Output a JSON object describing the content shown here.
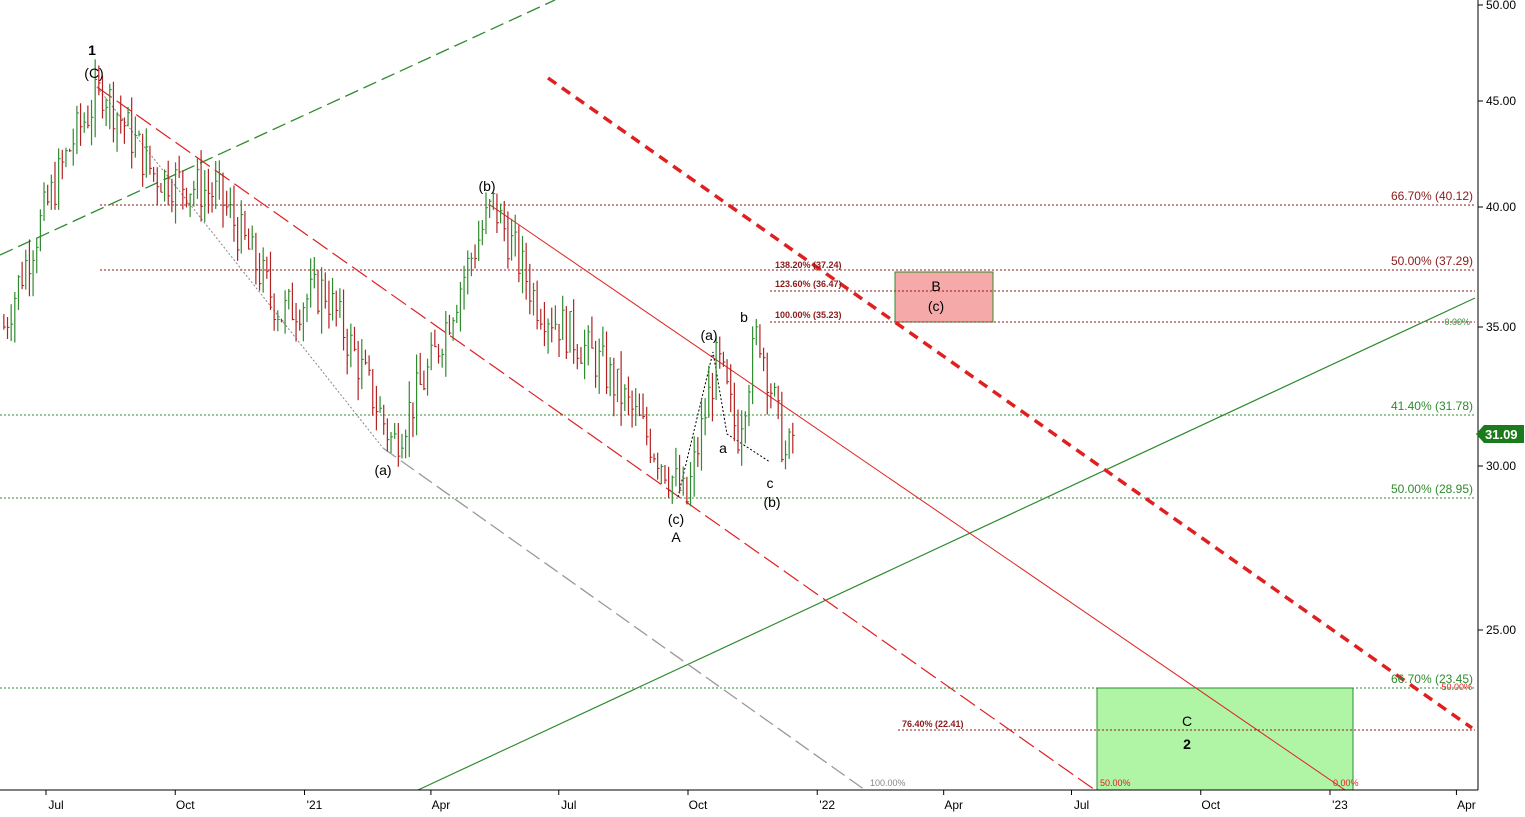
{
  "colors": {
    "up_bar": "#2e8b2e",
    "down_bar": "#b22222",
    "fib_red": "#8b1a1a",
    "fib_green": "#2e8b2e",
    "channel_red": "#e02020",
    "trend_green": "#2e8b2e",
    "wave_blue": "#0000dd",
    "zone_red": "#f5a9a9",
    "zone_green": "#b0f5a6",
    "price_tag": "#1b7a1b"
  },
  "chart_data": {
    "type": "ohlc",
    "y_axis": {
      "ticks": [
        "50.00",
        "45.00",
        "40.00",
        "35.00",
        "30.00",
        "25.00"
      ],
      "scale": "log"
    },
    "x_axis": {
      "ticks": [
        "Jul",
        "Oct",
        "'21",
        "Apr",
        "Jul",
        "Oct",
        "'22",
        "Apr",
        "Jul",
        "Oct",
        "'23",
        "Apr"
      ]
    },
    "current_price": "31.09",
    "price_path": [
      {
        "date": "2020-06",
        "price": 35.0
      },
      {
        "date": "2020-07-20",
        "price": 43.0
      },
      {
        "date": "2020-08-10",
        "price": 45.6
      },
      {
        "date": "2020-09-15",
        "price": 41.5
      },
      {
        "date": "2020-11-01",
        "price": 40.5
      },
      {
        "date": "2020-12-15",
        "price": 35.5
      },
      {
        "date": "2021-01-15",
        "price": 36.5
      },
      {
        "date": "2021-03-05",
        "price": 30.7
      },
      {
        "date": "2021-04-01",
        "price": 33.5
      },
      {
        "date": "2021-05-15",
        "price": 40.1
      },
      {
        "date": "2021-06-15",
        "price": 36.0
      },
      {
        "date": "2021-08-01",
        "price": 33.5
      },
      {
        "date": "2021-09-30",
        "price": 28.8
      },
      {
        "date": "2021-10-22",
        "price": 33.8
      },
      {
        "date": "2021-11-05",
        "price": 31.0
      },
      {
        "date": "2021-11-20",
        "price": 34.9
      },
      {
        "date": "2021-12-10",
        "price": 30.1
      },
      {
        "date": "2021-12-15",
        "price": 31.09
      }
    ],
    "fib_levels_right": [
      {
        "label": "66.70% (40.12)",
        "price": 40.12,
        "color": "red"
      },
      {
        "label": "50.00% (37.29)",
        "price": 37.29,
        "color": "red"
      },
      {
        "label": "41.40% (31.78)",
        "price": 31.78,
        "color": "green"
      },
      {
        "label": "50.00% (28.95)",
        "price": 28.95,
        "color": "green"
      },
      {
        "label": "66.70% (23.45)",
        "price": 23.45,
        "color": "green"
      }
    ],
    "fib_levels_inner": [
      {
        "label": "138.20% (37.24)",
        "price": 37.24
      },
      {
        "label": "123.60% (36.47)",
        "price": 36.47
      },
      {
        "label": "100.00% (35.23)",
        "price": 35.23
      },
      {
        "label": "76.40% (22.41)",
        "price": 22.41
      }
    ],
    "small_labels": [
      "0.00%",
      "50.00%",
      "100.00%",
      "50.00%",
      "0.00%"
    ],
    "wave_labels": [
      {
        "text": "1",
        "blue": true
      },
      {
        "text": "(C)"
      },
      {
        "text": "(a)"
      },
      {
        "text": "(b)"
      },
      {
        "text": "(c)"
      },
      {
        "text": "A"
      },
      {
        "text": "(a)"
      },
      {
        "text": "a"
      },
      {
        "text": "b"
      },
      {
        "text": "c"
      },
      {
        "text": "(b)"
      },
      {
        "text": "B"
      },
      {
        "text": "(c)"
      },
      {
        "text": "C"
      },
      {
        "text": "2",
        "blue": true
      }
    ]
  }
}
